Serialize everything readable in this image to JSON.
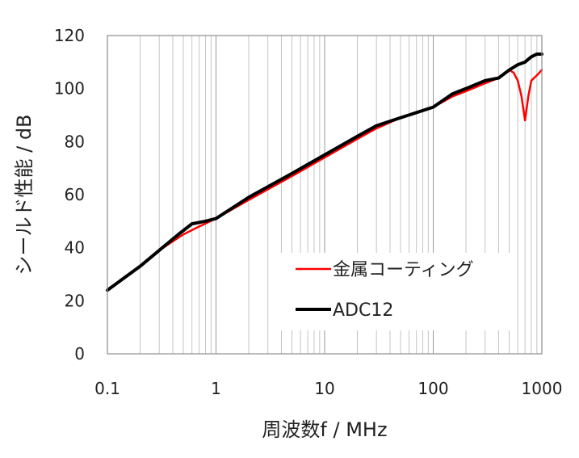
{
  "chart_data": {
    "type": "line",
    "xlabel": "周波数f / MHz",
    "ylabel": "シールド性能 / dB",
    "xscale": "log",
    "xlim": [
      0.1,
      1000
    ],
    "ylim": [
      0,
      120
    ],
    "x_ticks": [
      "0.1",
      "1",
      "10",
      "100",
      "1000"
    ],
    "y_ticks": [
      "0",
      "20",
      "40",
      "60",
      "80",
      "100",
      "120"
    ],
    "grid": "vertical-minor",
    "legend": "bottom-right",
    "series": [
      {
        "name": "金属コーティング",
        "color": "#ff0000",
        "points": [
          [
            0.1,
            24
          ],
          [
            0.2,
            33
          ],
          [
            0.3,
            39
          ],
          [
            0.5,
            45
          ],
          [
            0.7,
            48
          ],
          [
            1,
            51
          ],
          [
            2,
            58
          ],
          [
            5,
            67
          ],
          [
            10,
            74
          ],
          [
            20,
            81
          ],
          [
            30,
            85
          ],
          [
            50,
            89
          ],
          [
            100,
            93
          ],
          [
            150,
            97
          ],
          [
            200,
            99
          ],
          [
            300,
            102
          ],
          [
            400,
            104
          ],
          [
            500,
            107
          ],
          [
            550,
            106
          ],
          [
            600,
            103
          ],
          [
            650,
            97
          ],
          [
            700,
            88
          ],
          [
            750,
            97
          ],
          [
            800,
            103
          ],
          [
            900,
            105
          ],
          [
            1000,
            107
          ]
        ]
      },
      {
        "name": "ADC12",
        "color": "#000000",
        "points": [
          [
            0.1,
            24
          ],
          [
            0.2,
            33
          ],
          [
            0.3,
            39
          ],
          [
            0.45,
            45
          ],
          [
            0.6,
            49
          ],
          [
            0.8,
            50
          ],
          [
            1,
            51
          ],
          [
            2,
            59
          ],
          [
            5,
            68
          ],
          [
            10,
            75
          ],
          [
            20,
            82
          ],
          [
            30,
            86
          ],
          [
            50,
            89
          ],
          [
            100,
            93
          ],
          [
            150,
            98
          ],
          [
            200,
            100
          ],
          [
            300,
            103
          ],
          [
            400,
            104
          ],
          [
            500,
            107
          ],
          [
            600,
            109
          ],
          [
            700,
            110
          ],
          [
            800,
            112
          ],
          [
            900,
            113
          ],
          [
            1000,
            113
          ]
        ]
      }
    ]
  }
}
